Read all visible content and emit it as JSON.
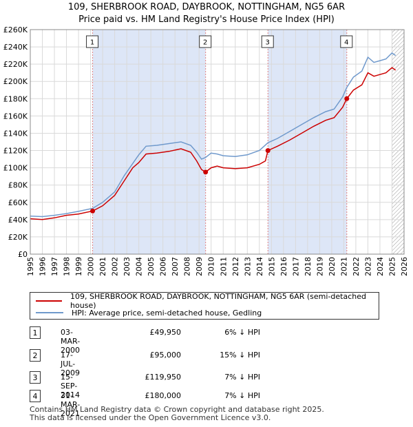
{
  "title_line1": "109, SHERBROOK ROAD, DAYBROOK, NOTTINGHAM, NG5 6AR",
  "title_line2": "Price paid vs. HM Land Registry's House Price Index (HPI)",
  "chart_data": {
    "type": "line",
    "xlim": [
      1995,
      2026
    ],
    "ylim": [
      0,
      260000
    ],
    "y_ticks": [
      0,
      20000,
      40000,
      60000,
      80000,
      100000,
      120000,
      140000,
      160000,
      180000,
      200000,
      220000,
      240000,
      260000
    ],
    "y_tick_labels": [
      "£0",
      "£20K",
      "£40K",
      "£60K",
      "£80K",
      "£100K",
      "£120K",
      "£140K",
      "£160K",
      "£180K",
      "£200K",
      "£220K",
      "£240K",
      "£260K"
    ],
    "x_ticks": [
      1995,
      1996,
      1997,
      1998,
      1999,
      2000,
      2001,
      2002,
      2003,
      2004,
      2005,
      2006,
      2007,
      2008,
      2009,
      2010,
      2011,
      2012,
      2013,
      2014,
      2015,
      2016,
      2017,
      2018,
      2019,
      2020,
      2021,
      2022,
      2023,
      2024,
      2025,
      2026
    ],
    "x_tick_labels": [
      "1995",
      "1996",
      "1997",
      "1998",
      "1999",
      "2000",
      "2001",
      "2002",
      "2003",
      "2004",
      "2005",
      "2006",
      "2007",
      "2008",
      "2009",
      "2010",
      "2011",
      "2012",
      "2013",
      "2014",
      "2015",
      "2016",
      "2017",
      "2018",
      "2019",
      "2020",
      "2021",
      "2022",
      "2023",
      "2024",
      "2025",
      "2026"
    ],
    "grid": true,
    "colors": {
      "property": "#cc0000",
      "hpi": "#6f99cc",
      "shade": "#dde6f7",
      "vline": "#e08080",
      "hatch": "#999999"
    },
    "hatch_from": 2025.0,
    "shaded_ranges": [
      [
        2000.17,
        2009.54
      ],
      [
        2014.71,
        2021.25
      ]
    ],
    "series": [
      {
        "name": "109, SHERBROOK ROAD, DAYBROOK, NOTTINGHAM, NG5 6AR (semi-detached house)",
        "key": "property",
        "points": [
          [
            1995.0,
            41000
          ],
          [
            1996.0,
            40000
          ],
          [
            1997.0,
            42000
          ],
          [
            1998.0,
            45000
          ],
          [
            1999.0,
            46500
          ],
          [
            2000.17,
            49950
          ],
          [
            2001.0,
            56000
          ],
          [
            2002.0,
            68000
          ],
          [
            2002.8,
            85000
          ],
          [
            2003.5,
            100000
          ],
          [
            2004.0,
            106000
          ],
          [
            2004.6,
            116000
          ],
          [
            2005.5,
            117000
          ],
          [
            2006.5,
            119000
          ],
          [
            2007.5,
            122000
          ],
          [
            2008.3,
            118000
          ],
          [
            2008.8,
            108000
          ],
          [
            2009.2,
            98000
          ],
          [
            2009.54,
            95000
          ],
          [
            2010.0,
            100000
          ],
          [
            2010.5,
            102000
          ],
          [
            2011.0,
            100000
          ],
          [
            2012.0,
            99000
          ],
          [
            2013.0,
            100000
          ],
          [
            2014.0,
            104000
          ],
          [
            2014.5,
            108000
          ],
          [
            2014.71,
            119950
          ],
          [
            2015.5,
            125000
          ],
          [
            2016.5,
            132000
          ],
          [
            2017.5,
            140000
          ],
          [
            2018.5,
            148000
          ],
          [
            2019.5,
            155000
          ],
          [
            2020.2,
            158000
          ],
          [
            2020.9,
            170000
          ],
          [
            2021.25,
            180000
          ],
          [
            2021.8,
            190000
          ],
          [
            2022.5,
            196000
          ],
          [
            2023.0,
            210000
          ],
          [
            2023.5,
            206000
          ],
          [
            2024.0,
            208000
          ],
          [
            2024.5,
            210000
          ],
          [
            2025.0,
            216000
          ],
          [
            2025.3,
            213000
          ]
        ]
      },
      {
        "name": "HPI: Average price, semi-detached house, Gedling",
        "key": "hpi",
        "points": [
          [
            1995.0,
            44000
          ],
          [
            1996.0,
            43500
          ],
          [
            1997.0,
            45000
          ],
          [
            1998.0,
            47000
          ],
          [
            1999.0,
            49500
          ],
          [
            2000.17,
            53000
          ],
          [
            2001.0,
            60000
          ],
          [
            2002.0,
            72000
          ],
          [
            2002.8,
            91000
          ],
          [
            2003.5,
            105000
          ],
          [
            2004.0,
            115000
          ],
          [
            2004.6,
            125000
          ],
          [
            2005.5,
            126000
          ],
          [
            2006.5,
            128000
          ],
          [
            2007.5,
            130000
          ],
          [
            2008.3,
            126000
          ],
          [
            2008.8,
            118000
          ],
          [
            2009.2,
            110000
          ],
          [
            2009.54,
            112000
          ],
          [
            2010.0,
            117000
          ],
          [
            2010.5,
            116000
          ],
          [
            2011.0,
            114000
          ],
          [
            2012.0,
            113000
          ],
          [
            2013.0,
            115000
          ],
          [
            2014.0,
            120000
          ],
          [
            2014.71,
            129000
          ],
          [
            2015.5,
            134000
          ],
          [
            2016.5,
            142000
          ],
          [
            2017.5,
            150000
          ],
          [
            2018.5,
            158000
          ],
          [
            2019.5,
            165000
          ],
          [
            2020.2,
            168000
          ],
          [
            2020.9,
            182000
          ],
          [
            2021.25,
            193000
          ],
          [
            2021.8,
            205000
          ],
          [
            2022.5,
            212000
          ],
          [
            2023.0,
            228000
          ],
          [
            2023.5,
            222000
          ],
          [
            2024.0,
            224000
          ],
          [
            2024.5,
            226000
          ],
          [
            2025.0,
            233000
          ],
          [
            2025.3,
            230000
          ]
        ]
      }
    ],
    "sales": [
      {
        "num": "1",
        "x": 2000.17,
        "price": 49950,
        "date": "03-MAR-2000",
        "price_label": "£49,950",
        "diff": "6% ↓ HPI"
      },
      {
        "num": "2",
        "x": 2009.54,
        "price": 95000,
        "date": "17-JUL-2009",
        "price_label": "£95,000",
        "diff": "15% ↓ HPI"
      },
      {
        "num": "3",
        "x": 2014.71,
        "price": 119950,
        "date": "15-SEP-2014",
        "price_label": "£119,950",
        "diff": "7% ↓ HPI"
      },
      {
        "num": "4",
        "x": 2021.25,
        "price": 180000,
        "date": "31-MAR-2021",
        "price_label": "£180,000",
        "diff": "7% ↓ HPI"
      }
    ]
  },
  "legend": {
    "property_label": "109, SHERBROOK ROAD, DAYBROOK, NOTTINGHAM, NG5 6AR (semi-detached house)",
    "hpi_label": "HPI: Average price, semi-detached house, Gedling"
  },
  "footer": {
    "line1": "Contains HM Land Registry data © Crown copyright and database right 2025.",
    "line2": "This data is licensed under the Open Government Licence v3.0."
  }
}
